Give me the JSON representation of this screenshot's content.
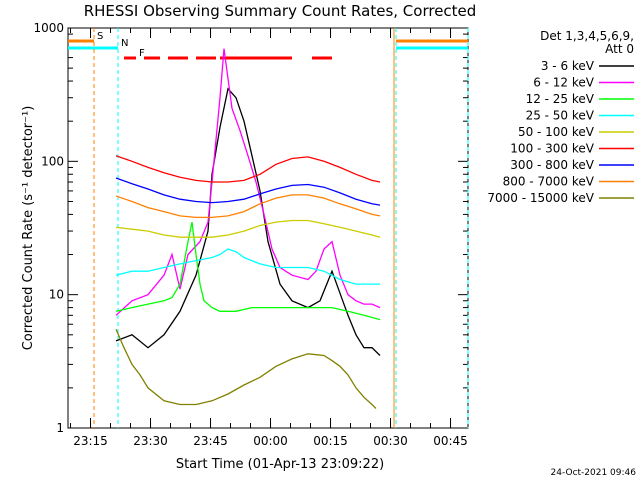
{
  "chart_data": {
    "type": "line",
    "title": "RHESSI Observing Summary Count Rates, Corrected",
    "xlabel": "Start Time (01-Apr-13 23:09:22)",
    "ylabel": "Corrected Count Rate (s⁻¹ detector⁻¹)",
    "y_scale": "log",
    "ylim": [
      1,
      1000
    ],
    "xlim_minutes_from_start": [
      0,
      100
    ],
    "y_ticks": [
      {
        "value": 1,
        "label": "1"
      },
      {
        "value": 10,
        "label": "10"
      },
      {
        "value": 100,
        "label": "100"
      },
      {
        "value": 1000,
        "label": "1000"
      }
    ],
    "x_ticks": [
      {
        "minute": 5.63,
        "label": "23:15"
      },
      {
        "minute": 20.63,
        "label": "23:30"
      },
      {
        "minute": 35.63,
        "label": "23:45"
      },
      {
        "minute": 50.63,
        "label": "00:00"
      },
      {
        "minute": 65.63,
        "label": "00:15"
      },
      {
        "minute": 80.63,
        "label": "00:30"
      },
      {
        "minute": 95.63,
        "label": "00:45"
      }
    ],
    "legend_title": "Det 1,3,4,5,6,9,",
    "legend_subtitle": "Att 0",
    "legend_position": "right-outside",
    "grid": false,
    "series": [
      {
        "name": "3 - 6 keV",
        "color": "#000000",
        "x": [
          12,
          16,
          20,
          24,
          28,
          32,
          35,
          36,
          38,
          40,
          42,
          44,
          46,
          48,
          50,
          53,
          56,
          60,
          63,
          66,
          70,
          72,
          74,
          76,
          78
        ],
        "y": [
          4.5,
          5.0,
          4.0,
          5.0,
          7.5,
          14,
          30,
          80,
          180,
          350,
          300,
          200,
          110,
          60,
          25,
          12,
          9,
          8,
          9,
          15,
          7,
          5,
          4,
          4,
          3.5
        ]
      },
      {
        "name": "6 - 12 keV",
        "color": "#ff00ff",
        "x": [
          12,
          16,
          20,
          24,
          26,
          28,
          30,
          33,
          35,
          36,
          38,
          39,
          41,
          43,
          45,
          47,
          49,
          51,
          53,
          56,
          60,
          62,
          64,
          66,
          68,
          70,
          72,
          74,
          76,
          78
        ],
        "y": [
          7,
          9,
          10,
          14,
          20,
          11,
          20,
          25,
          35,
          70,
          300,
          700,
          250,
          170,
          110,
          70,
          40,
          22,
          16,
          14,
          13,
          15,
          22,
          25,
          14,
          10,
          9,
          8.5,
          8.5,
          8
        ]
      },
      {
        "name": "12 - 25 keV",
        "color": "#00ff00",
        "x": [
          12,
          16,
          20,
          24,
          26,
          28,
          30,
          31,
          32,
          33,
          34,
          36,
          38,
          42,
          46,
          50,
          54,
          58,
          62,
          66,
          70,
          74,
          78
        ],
        "y": [
          7.5,
          8.0,
          8.5,
          9.0,
          9.5,
          12,
          25,
          35,
          20,
          12,
          9,
          8,
          7.5,
          7.5,
          8,
          8,
          8,
          8,
          8,
          8,
          7.5,
          7,
          6.5
        ]
      },
      {
        "name": "25 - 50 keV",
        "color": "#00ffff",
        "x": [
          12,
          16,
          20,
          24,
          28,
          32,
          36,
          38,
          40,
          42,
          44,
          48,
          52,
          56,
          60,
          64,
          68,
          72,
          76,
          78
        ],
        "y": [
          14,
          15,
          15,
          16,
          17,
          18,
          19,
          20,
          22,
          21,
          19,
          17,
          16,
          16,
          16,
          15,
          13,
          12,
          12,
          12
        ]
      },
      {
        "name": "50 - 100 keV",
        "color": "#cccc00",
        "x": [
          12,
          16,
          20,
          24,
          28,
          32,
          36,
          40,
          44,
          48,
          52,
          56,
          60,
          64,
          68,
          72,
          76,
          78
        ],
        "y": [
          32,
          31,
          30,
          28,
          27,
          27,
          27,
          28,
          30,
          33,
          35,
          36,
          36,
          34,
          32,
          30,
          28,
          27
        ]
      },
      {
        "name": "100 - 300 keV",
        "color": "#ff0000",
        "x": [
          12,
          16,
          20,
          24,
          28,
          32,
          36,
          40,
          44,
          48,
          52,
          56,
          60,
          64,
          68,
          72,
          76,
          78
        ],
        "y": [
          110,
          100,
          90,
          82,
          76,
          72,
          70,
          70,
          72,
          80,
          95,
          105,
          108,
          100,
          90,
          80,
          72,
          70
        ]
      },
      {
        "name": "300 - 800 keV",
        "color": "#0000ff",
        "x": [
          12,
          16,
          20,
          24,
          28,
          32,
          36,
          40,
          44,
          48,
          52,
          56,
          60,
          64,
          68,
          72,
          76,
          78
        ],
        "y": [
          75,
          68,
          62,
          56,
          52,
          50,
          49,
          50,
          52,
          57,
          62,
          66,
          67,
          64,
          58,
          52,
          48,
          47
        ]
      },
      {
        "name": "800 - 7000 keV",
        "color": "#ff8000",
        "x": [
          12,
          16,
          20,
          24,
          28,
          32,
          36,
          40,
          44,
          48,
          52,
          56,
          60,
          64,
          68,
          72,
          76,
          78
        ],
        "y": [
          55,
          50,
          45,
          42,
          39,
          38,
          38,
          39,
          42,
          48,
          53,
          56,
          56,
          53,
          48,
          44,
          40,
          39
        ]
      },
      {
        "name": "7000 - 15000 keV",
        "color": "#808000",
        "x": [
          12,
          14,
          16,
          18,
          20,
          24,
          28,
          32,
          36,
          40,
          44,
          48,
          52,
          56,
          60,
          64,
          66,
          68,
          70,
          72,
          74,
          76,
          77
        ],
        "y": [
          5.5,
          4.0,
          3.0,
          2.5,
          2.0,
          1.6,
          1.5,
          1.5,
          1.6,
          1.8,
          2.1,
          2.4,
          2.9,
          3.3,
          3.6,
          3.5,
          3.2,
          2.9,
          2.5,
          2.0,
          1.7,
          1.5,
          1.4
        ]
      }
    ],
    "flags": [
      {
        "label": "S",
        "color": "#ff8000",
        "segments": [
          [
            0,
            6.5
          ],
          [
            82,
            100
          ]
        ]
      },
      {
        "label": "N",
        "color": "#00ffff",
        "segments": [
          [
            0,
            12.5
          ],
          [
            82,
            100
          ]
        ]
      },
      {
        "label": "F",
        "color": "#ff0000",
        "segments": [
          [
            14,
            17
          ],
          [
            19,
            23
          ],
          [
            25,
            30
          ],
          [
            32,
            37
          ],
          [
            38,
            56
          ],
          [
            61,
            66
          ]
        ]
      }
    ]
  },
  "footer_timestamp": "24-Oct-2021 09:46"
}
